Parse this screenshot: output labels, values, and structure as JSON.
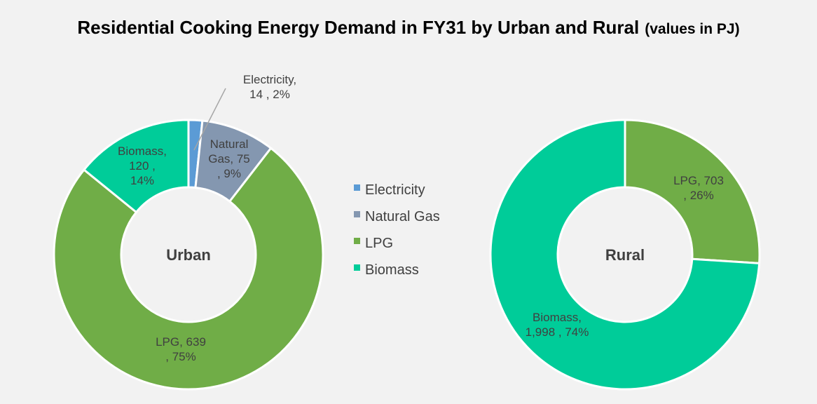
{
  "title": "Residential Cooking Energy Demand in FY31 by Urban and Rural",
  "subtitle": "(values in PJ)",
  "colors": {
    "Electricity": "#5b9bd5",
    "Natural Gas": "#8497b0",
    "LPG": "#70ad47",
    "Biomass": "#00cc99"
  },
  "legend": [
    "Electricity",
    "Natural Gas",
    "LPG",
    "Biomass"
  ],
  "chart_data": [
    {
      "type": "pie",
      "center_label": "Urban",
      "unit": "PJ",
      "slices": [
        {
          "name": "Electricity",
          "value": 14,
          "percent": "2%",
          "label_lines": [
            "Electricity,",
            "14 , 2%"
          ]
        },
        {
          "name": "Natural Gas",
          "value": 75,
          "percent": "9%",
          "label_lines": [
            "Natural",
            "Gas,  75",
            ", 9%"
          ]
        },
        {
          "name": "LPG",
          "value": 639,
          "percent": "75%",
          "label_lines": [
            "LPG,  639",
            ", 75%"
          ]
        },
        {
          "name": "Biomass",
          "value": 120,
          "percent": "14%",
          "label_lines": [
            "Biomass,",
            "120 ,",
            "14%"
          ]
        }
      ]
    },
    {
      "type": "pie",
      "center_label": "Rural",
      "unit": "PJ",
      "slices": [
        {
          "name": "LPG",
          "value": 703,
          "percent": "26%",
          "label_lines": [
            "LPG,  703",
            ", 26%"
          ]
        },
        {
          "name": "Biomass",
          "value": 1998,
          "percent": "74%",
          "label_lines": [
            "Biomass,",
            "1,998 , 74%"
          ]
        }
      ]
    }
  ]
}
